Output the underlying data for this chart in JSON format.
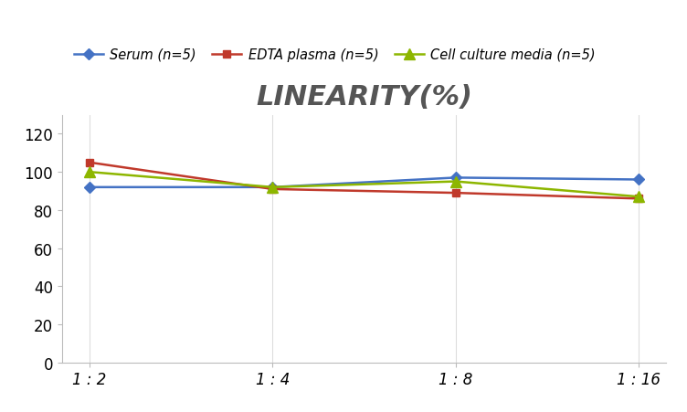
{
  "title": "LINEARITY(%)",
  "x_labels": [
    "1 : 2",
    "1 : 4",
    "1 : 8",
    "1 : 16"
  ],
  "x_positions": [
    0,
    1,
    2,
    3
  ],
  "series": [
    {
      "label": "Serum (n=5)",
      "values": [
        92,
        92,
        97,
        96
      ],
      "color": "#4472C4",
      "marker": "D",
      "marker_size": 6,
      "linewidth": 1.8
    },
    {
      "label": "EDTA plasma (n=5)",
      "values": [
        105,
        91,
        89,
        86
      ],
      "color": "#C0392B",
      "marker": "s",
      "marker_size": 6,
      "linewidth": 1.8
    },
    {
      "label": "Cell culture media (n=5)",
      "values": [
        100,
        92,
        95,
        87
      ],
      "color": "#8DB600",
      "marker": "^",
      "marker_size": 8,
      "linewidth": 1.8
    }
  ],
  "ylim": [
    0,
    130
  ],
  "yticks": [
    0,
    20,
    40,
    60,
    80,
    100,
    120
  ],
  "grid_color": "#DDDDDD",
  "background_color": "#FFFFFF",
  "title_fontsize": 22,
  "title_color": "#555555",
  "legend_fontsize": 10.5,
  "tick_fontsize": 12
}
